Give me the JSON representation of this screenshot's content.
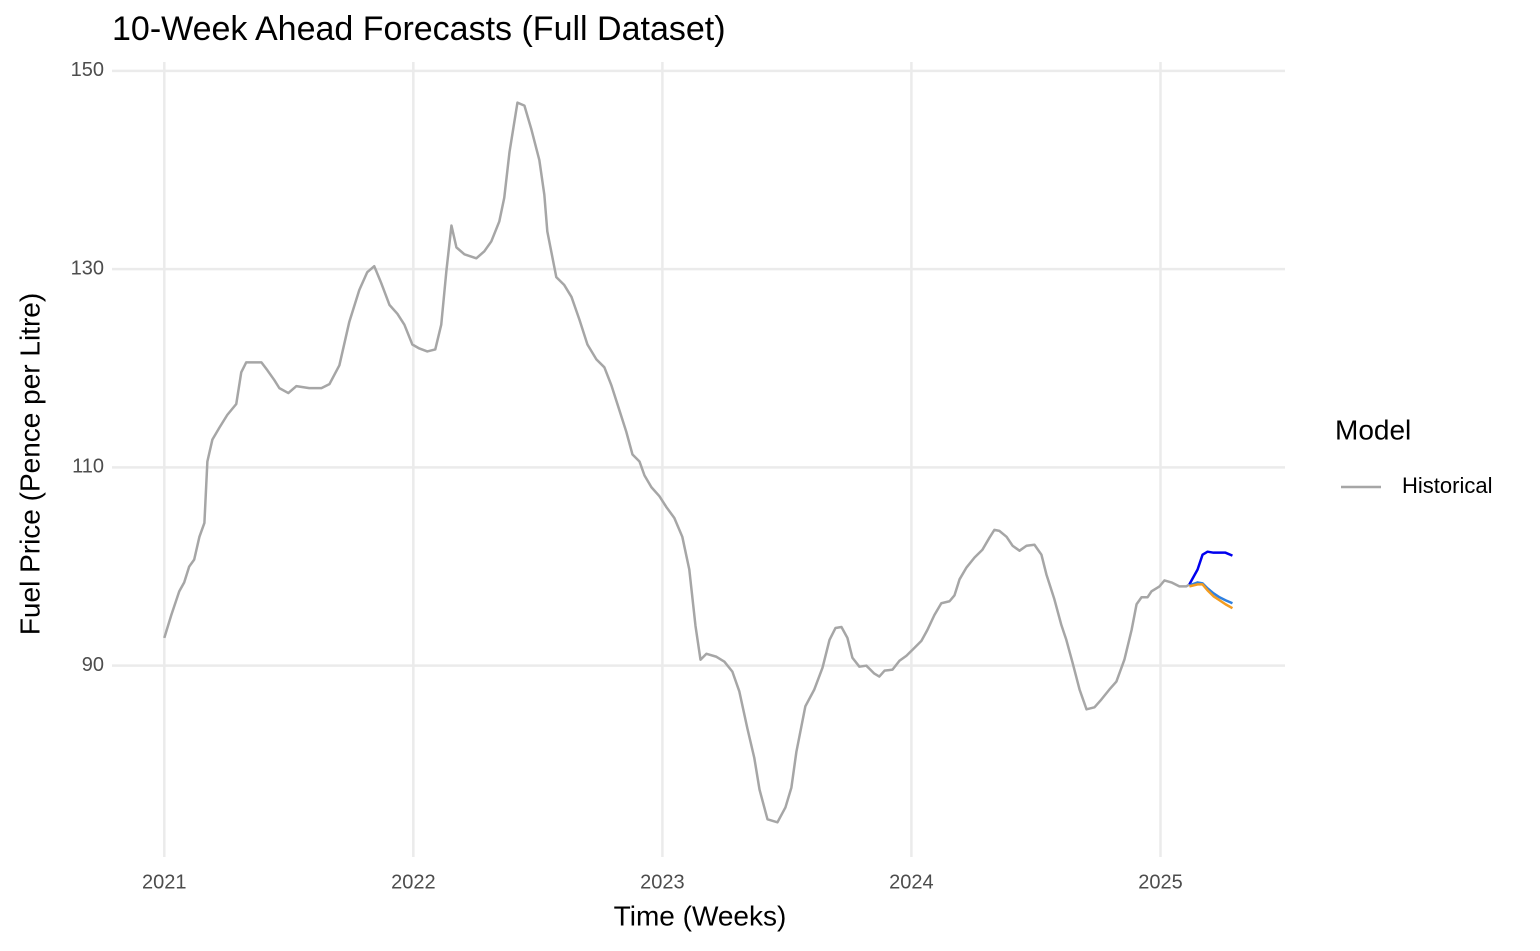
{
  "chart_data": {
    "type": "line",
    "title": "10-Week Ahead Forecasts (Full Dataset)",
    "x_label": "Time (Weeks)",
    "y_label": "Fuel Price (Pence per Litre)",
    "legend_title": "Model",
    "legend_position": "right",
    "grid": true,
    "xlim": [
      2020.79,
      2025.5
    ],
    "xticks": [
      2021,
      2022,
      2023,
      2024,
      2025
    ],
    "ylim": [
      70.7,
      150.9
    ],
    "yticks": [
      90,
      110,
      130,
      150
    ],
    "series": [
      {
        "name": "Historical",
        "color": "#a6a6a6",
        "x": [
          2021.0,
          2021.028,
          2021.06,
          2021.08,
          2021.1,
          2021.12,
          2021.141,
          2021.161,
          2021.173,
          2021.193,
          2021.221,
          2021.253,
          2021.289,
          2021.309,
          2021.329,
          2021.39,
          2021.414,
          2021.442,
          2021.462,
          2021.498,
          2021.53,
          2021.582,
          2021.631,
          2021.663,
          2021.703,
          2021.743,
          2021.783,
          2021.815,
          2021.843,
          2021.871,
          2021.904,
          2021.936,
          2021.964,
          2021.996,
          2022.024,
          2022.056,
          2022.088,
          2022.112,
          2022.133,
          2022.153,
          2022.173,
          2022.205,
          2022.253,
          2022.285,
          2022.313,
          2022.345,
          2022.365,
          2022.386,
          2022.418,
          2022.446,
          2022.474,
          2022.506,
          2022.526,
          2022.538,
          2022.574,
          2022.606,
          2022.635,
          2022.667,
          2022.699,
          2022.735,
          2022.767,
          2022.795,
          2022.827,
          2022.855,
          2022.88,
          2022.908,
          2022.928,
          2022.956,
          2022.988,
          2023.016,
          2023.048,
          2023.08,
          2023.108,
          2023.133,
          2023.153,
          2023.177,
          2023.217,
          2023.249,
          2023.281,
          2023.309,
          2023.341,
          2023.369,
          2023.39,
          2023.422,
          2023.462,
          2023.494,
          2023.518,
          2023.538,
          2023.574,
          2023.61,
          2023.643,
          2023.671,
          2023.695,
          2023.719,
          2023.743,
          2023.763,
          2023.791,
          2023.819,
          2023.851,
          2023.871,
          2023.892,
          2023.924,
          2023.952,
          2023.98,
          2024.012,
          2024.04,
          2024.064,
          2024.092,
          2024.12,
          2024.153,
          2024.173,
          2024.193,
          2024.221,
          2024.253,
          2024.285,
          2024.313,
          2024.333,
          2024.353,
          2024.382,
          2024.406,
          2024.434,
          2024.462,
          2024.494,
          2024.522,
          2024.542,
          2024.574,
          2024.602,
          2024.622,
          2024.647,
          2024.675,
          2024.703,
          2024.735,
          2024.763,
          2024.795,
          2024.823,
          2024.855,
          2024.884,
          2024.904,
          2024.924,
          2024.948,
          2024.964,
          2024.996,
          2025.016,
          2025.044,
          2025.076,
          2025.104,
          2025.116
        ],
        "values": [
          92.8,
          95.1,
          97.5,
          98.4,
          100.0,
          100.7,
          103.0,
          104.4,
          110.6,
          112.8,
          114.0,
          115.3,
          116.4,
          119.6,
          120.6,
          120.6,
          119.8,
          118.8,
          118.0,
          117.5,
          118.2,
          118.0,
          118.0,
          118.4,
          120.3,
          124.7,
          127.9,
          129.7,
          130.3,
          128.6,
          126.4,
          125.5,
          124.4,
          122.4,
          122.0,
          121.7,
          121.9,
          124.4,
          129.9,
          134.4,
          132.2,
          131.5,
          131.1,
          131.8,
          132.8,
          134.8,
          137.2,
          141.8,
          146.8,
          146.5,
          144.1,
          141.0,
          137.5,
          133.8,
          129.2,
          128.4,
          127.2,
          124.9,
          122.4,
          120.9,
          120.1,
          118.3,
          115.8,
          113.6,
          111.3,
          110.6,
          109.2,
          108.0,
          107.1,
          106.0,
          104.9,
          103.0,
          99.7,
          94.0,
          90.6,
          91.2,
          90.9,
          90.4,
          89.4,
          87.4,
          83.7,
          80.7,
          77.5,
          74.5,
          74.2,
          75.7,
          77.7,
          81.3,
          85.9,
          87.6,
          89.8,
          92.6,
          93.8,
          93.9,
          92.8,
          90.8,
          89.9,
          90.0,
          89.2,
          88.9,
          89.5,
          89.6,
          90.5,
          91.0,
          91.8,
          92.5,
          93.6,
          95.1,
          96.3,
          96.5,
          97.1,
          98.7,
          99.9,
          100.9,
          101.7,
          102.9,
          103.7,
          103.6,
          103.0,
          102.1,
          101.6,
          102.1,
          102.2,
          101.2,
          99.2,
          96.7,
          94.1,
          92.6,
          90.3,
          87.6,
          85.6,
          85.8,
          86.6,
          87.6,
          88.4,
          90.6,
          93.6,
          96.2,
          96.9,
          96.9,
          97.5,
          98.0,
          98.6,
          98.4,
          98.0,
          98.0,
          98.2
        ]
      },
      {
        "color": "#0000ee",
        "x": [
          2025.116,
          2025.149,
          2025.169,
          2025.189,
          2025.213,
          2025.237,
          2025.261,
          2025.289
        ],
        "values": [
          98.2,
          99.7,
          101.2,
          101.5,
          101.4,
          101.4,
          101.4,
          101.1
        ]
      },
      {
        "color": "#2f80e0",
        "x": [
          2025.116,
          2025.149,
          2025.169,
          2025.189,
          2025.213,
          2025.237,
          2025.261,
          2025.289
        ],
        "values": [
          98.1,
          98.4,
          98.3,
          97.8,
          97.3,
          96.9,
          96.6,
          96.3
        ]
      },
      {
        "color": "#f39c20",
        "x": [
          2025.116,
          2025.149,
          2025.169,
          2025.189,
          2025.213,
          2025.237,
          2025.261,
          2025.289
        ],
        "values": [
          98.0,
          98.2,
          98.2,
          97.6,
          97.0,
          96.6,
          96.2,
          95.8
        ]
      }
    ]
  }
}
